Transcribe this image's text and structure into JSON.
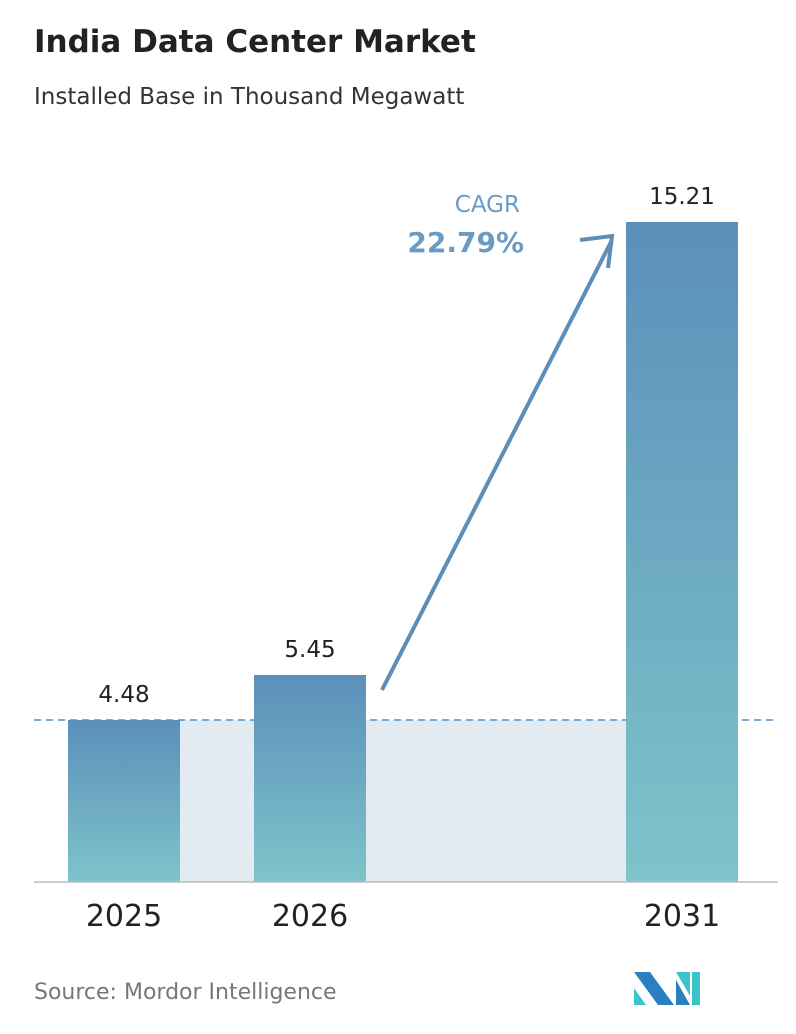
{
  "title": "India Data Center Market",
  "subtitle": "Installed Base in Thousand Megawatt",
  "source": "Source:  Mordor Intelligence",
  "cagr": {
    "label": "CAGR",
    "value": "22.79%"
  },
  "colors": {
    "bar_top": "#5b8fba",
    "bar_bottom": "#7ec4ca",
    "band": "#e3ebf2",
    "arrow": "#5b8fba"
  },
  "chart_data": {
    "type": "bar",
    "categories": [
      "2025",
      "2026",
      "2031"
    ],
    "values": [
      4.48,
      5.45,
      15.21
    ],
    "data_labels": [
      "4.48",
      "5.45",
      "15.21"
    ],
    "title": "India Data Center Market",
    "subtitle": "Installed Base in Thousand Megawatt",
    "xlabel": "",
    "ylabel": "",
    "grid": false
  }
}
